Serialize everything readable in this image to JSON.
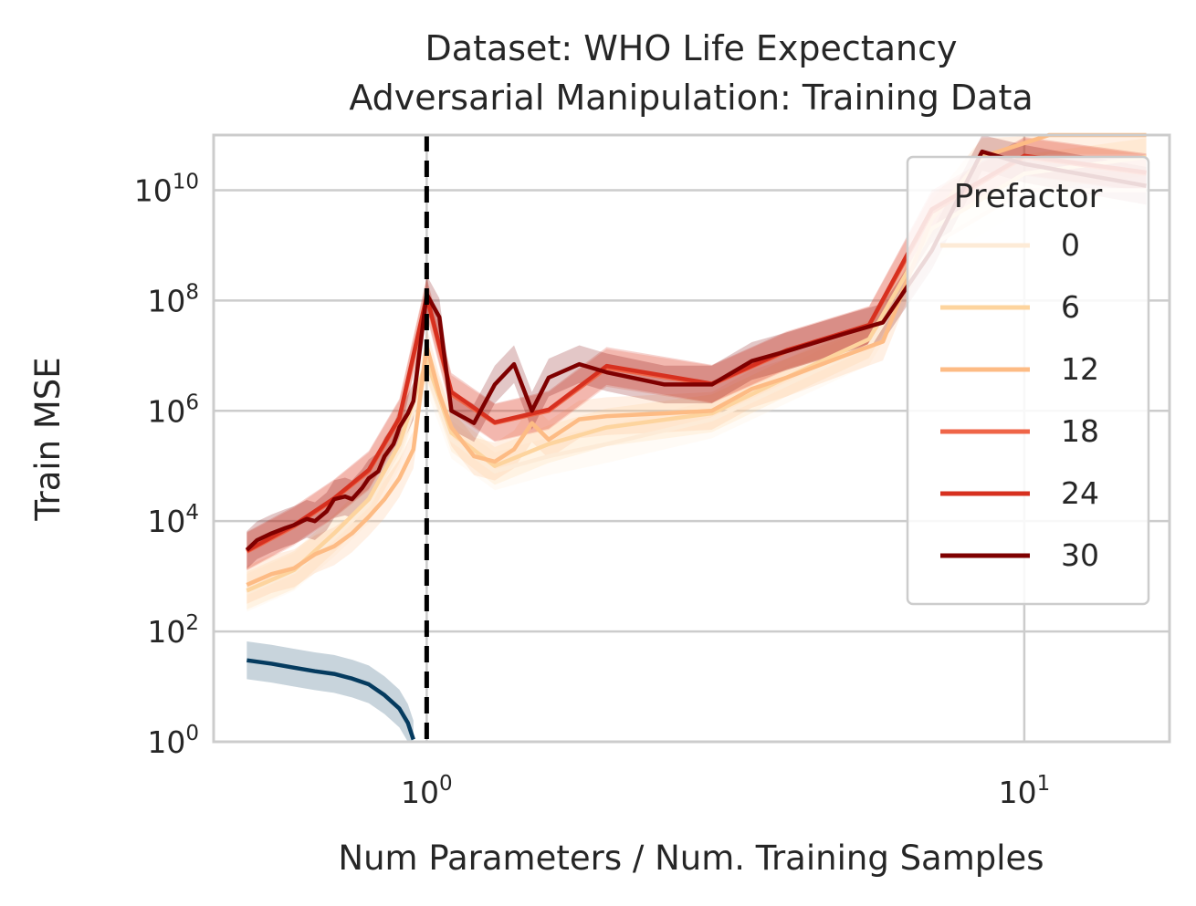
{
  "chart_data": {
    "type": "line",
    "title": "Dataset: WHO Life Expectancy",
    "subtitle": "Adversarial Manipulation: Training Data",
    "xlabel": "Num Parameters / Num. Training Samples",
    "ylabel": "Train MSE",
    "x_scale": "log",
    "y_scale": "log",
    "xlim": [
      0.44,
      17.5
    ],
    "ylim": [
      1,
      100000000000.0
    ],
    "x_ticks": [
      {
        "value": 1,
        "base": "10",
        "exp": "0"
      },
      {
        "value": 10,
        "base": "10",
        "exp": "1"
      }
    ],
    "y_ticks": [
      {
        "value": 1,
        "base": "10",
        "exp": "0"
      },
      {
        "value": 100,
        "base": "10",
        "exp": "2"
      },
      {
        "value": 10000,
        "base": "10",
        "exp": "4"
      },
      {
        "value": 1000000,
        "base": "10",
        "exp": "6"
      },
      {
        "value": 100000000,
        "base": "10",
        "exp": "8"
      },
      {
        "value": 10000000000,
        "base": "10",
        "exp": "10"
      }
    ],
    "grid": true,
    "interpolation_threshold": 1,
    "legend": {
      "title": "Prefactor",
      "position": "top-right"
    },
    "series": [
      {
        "name": "0",
        "color": "#fdebd7",
        "x": [
          0.5,
          0.6,
          0.7,
          0.8,
          0.9,
          1.0,
          1.1,
          1.3,
          1.6,
          2.0,
          3.0,
          4.0,
          5.5,
          7.0,
          10,
          16
        ],
        "y": [
          500,
          1200,
          5000,
          20000,
          200000,
          5000000,
          300000,
          80000,
          150000,
          250000,
          700000,
          3000000,
          15000000,
          1000000000.0,
          10000000000.0,
          10000000000.0
        ]
      },
      {
        "name": "6",
        "color": "#fdd49e",
        "x": [
          0.5,
          0.6,
          0.7,
          0.8,
          0.9,
          1.0,
          1.1,
          1.3,
          1.6,
          2.0,
          3.0,
          4.0,
          5.5,
          7.0,
          10,
          16
        ],
        "y": [
          550,
          1300,
          6000,
          25000,
          250000,
          8000000,
          400000,
          100000,
          250000,
          500000,
          900000,
          4000000,
          20000000,
          2000000000.0,
          20000000000.0,
          40000000000.0
        ]
      },
      {
        "name": "12",
        "color": "#fdbb84",
        "x": [
          0.5,
          0.55,
          0.6,
          0.65,
          0.7,
          0.75,
          0.8,
          0.85,
          0.9,
          0.95,
          1.0,
          1.05,
          1.1,
          1.2,
          1.3,
          1.4,
          1.5,
          1.6,
          1.8,
          2.0,
          2.5,
          3.0,
          3.5,
          4.0,
          5.0,
          5.8,
          7.0,
          8.5,
          11,
          16
        ],
        "y": [
          700,
          1100,
          1400,
          2500,
          3500,
          6000,
          12000,
          25000,
          60000,
          200000,
          15000000,
          2000000,
          500000,
          150000,
          120000,
          200000,
          600000,
          300000,
          700000,
          800000,
          900000,
          1000000,
          2500000,
          4000000,
          10000000,
          18000000,
          3000000000.0,
          40000000000.0,
          100000000000.0,
          100000000000.0
        ]
      },
      {
        "name": "18",
        "color": "#ef6548",
        "x": [
          0.5,
          0.6,
          0.7,
          0.8,
          0.9,
          1.0,
          1.1,
          1.3,
          1.6,
          2.0,
          3.0,
          4.0,
          5.5,
          7.0,
          10,
          16
        ],
        "y": [
          2800,
          8000,
          25000,
          80000,
          700000,
          110000000,
          2000000,
          600000,
          1000000,
          6000000,
          3000000,
          12000000,
          35000000,
          4000000000.0,
          40000000000.0,
          20000000000.0
        ]
      },
      {
        "name": "24",
        "color": "#d7301f",
        "x": [
          0.5,
          0.6,
          0.7,
          0.8,
          0.9,
          1.0,
          1.1,
          1.3,
          1.6,
          2.0,
          3.0,
          4.0,
          5.5,
          7.0,
          10,
          16
        ],
        "y": [
          2900,
          8500,
          26000,
          85000,
          750000,
          120000000,
          2200000,
          620000,
          1050000,
          6500000,
          3100000,
          12500000,
          36000000,
          4500000000.0,
          42000000000.0,
          21000000000.0
        ]
      },
      {
        "name": "30",
        "color": "#7f0000",
        "x": [
          0.5,
          0.52,
          0.55,
          0.58,
          0.6,
          0.63,
          0.65,
          0.68,
          0.7,
          0.73,
          0.75,
          0.78,
          0.8,
          0.83,
          0.85,
          0.88,
          0.9,
          0.93,
          0.95,
          1.0,
          1.05,
          1.1,
          1.2,
          1.3,
          1.4,
          1.5,
          1.6,
          1.8,
          2.0,
          2.5,
          3.0,
          3.5,
          4.0,
          5.0,
          5.8,
          7.0,
          8.5,
          10,
          16
        ],
        "y": [
          3000,
          4500,
          6000,
          7500,
          8500,
          11000,
          10000,
          15000,
          25000,
          28000,
          25000,
          40000,
          60000,
          80000,
          150000,
          250000,
          500000,
          900000,
          1500000,
          130000000,
          50000000,
          1000000,
          600000,
          3000000,
          7000000,
          1000000,
          4000000,
          7000000,
          5000000,
          3000000,
          3000000,
          8000000,
          12000000,
          25000000,
          40000000,
          800000000.0,
          50000000000.0,
          30000000000.0,
          12000000000.0
        ]
      },
      {
        "name": "",
        "color": "#053b5f",
        "x": [
          0.5,
          0.55,
          0.6,
          0.65,
          0.7,
          0.75,
          0.8,
          0.85,
          0.9,
          0.93,
          0.95
        ],
        "y": [
          30,
          26,
          22,
          19,
          17,
          14,
          11,
          7,
          4,
          2.2,
          1.1
        ]
      }
    ]
  }
}
